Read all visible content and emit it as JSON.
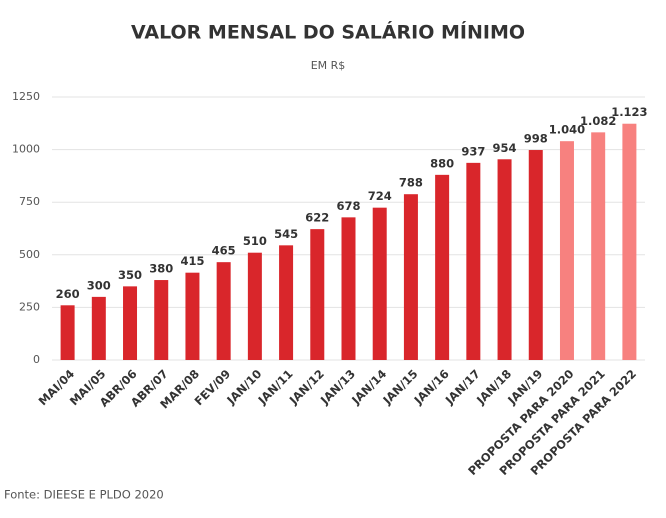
{
  "chart_data": {
    "type": "bar",
    "title": "VALOR MENSAL DO SALÁRIO MÍNIMO",
    "subtitle": "EM R$",
    "source": "Fonte: DIEESE E PLDO 2020",
    "categories": [
      "MAI/04",
      "MAI/05",
      "ABR/06",
      "ABR/07",
      "MAR/08",
      "FEV/09",
      "JAN/10",
      "JAN/11",
      "JAN/12",
      "JAN/13",
      "JAN/14",
      "JAN/15",
      "JAN/16",
      "JAN/17",
      "JAN/18",
      "JAN/19",
      "PROPOSTA PARA 2020",
      "PROPOSTA PARA 2021",
      "PROPOSTA PARA 2022"
    ],
    "values": [
      260,
      300,
      350,
      380,
      415,
      465,
      510,
      545,
      622,
      678,
      724,
      788,
      880,
      937,
      954,
      998,
      1040,
      1082,
      1123
    ],
    "value_labels": [
      "260",
      "300",
      "350",
      "380",
      "415",
      "465",
      "510",
      "545",
      "622",
      "678",
      "724",
      "788",
      "880",
      "937",
      "954",
      "998",
      "1.040",
      "1.082",
      "1.123"
    ],
    "colors": [
      "#d9262b",
      "#d9262b",
      "#d9262b",
      "#d9262b",
      "#d9262b",
      "#d9262b",
      "#d9262b",
      "#d9262b",
      "#d9262b",
      "#d9262b",
      "#d9262b",
      "#d9262b",
      "#d9262b",
      "#d9262b",
      "#d9262b",
      "#d9262b",
      "#f7817f",
      "#f7817f",
      "#f7817f"
    ],
    "ylim": [
      0,
      1250
    ],
    "yticks": [
      0,
      250,
      500,
      750,
      1000,
      1250
    ],
    "grid": true
  }
}
